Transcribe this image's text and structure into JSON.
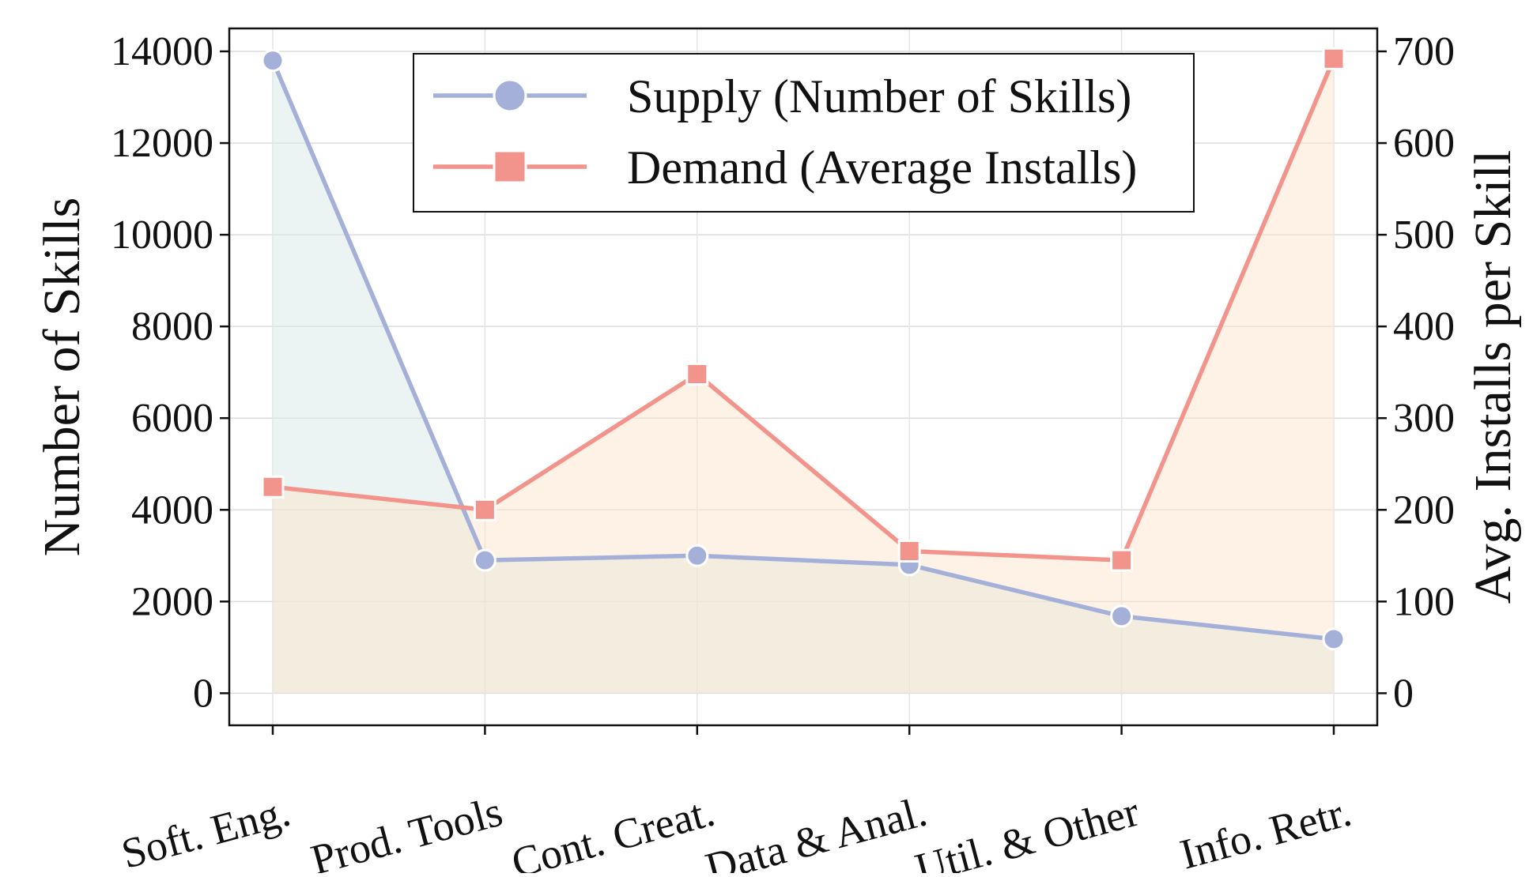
{
  "chart_data": {
    "type": "line",
    "categories": [
      "Soft. Eng.",
      "Prod. Tools",
      "Cont. Creat.",
      "Data & Anal.",
      "Util. & Other",
      "Info. Retr."
    ],
    "series": [
      {
        "name": "Supply (Number of Skills)",
        "axis": "left",
        "color": "#a5b0d9",
        "fill": "#d8eae6",
        "marker": "circle",
        "values": [
          13800,
          2900,
          3000,
          2800,
          1680,
          1180
        ]
      },
      {
        "name": "Demand (Average Installs)",
        "axis": "right",
        "color": "#f3948c",
        "fill": "#fbe5cc",
        "marker": "square",
        "values": [
          225,
          200,
          348,
          155,
          145,
          692
        ]
      }
    ],
    "ylabel": "Number of Skills",
    "y2label": "Avg. Installs per Skill",
    "ylim": [
      -700,
      14500
    ],
    "y2lim": [
      -35,
      725
    ],
    "yticks": [
      "0",
      "2000",
      "4000",
      "6000",
      "8000",
      "10000",
      "12000",
      "14000"
    ],
    "y2ticks": [
      "0",
      "100",
      "200",
      "300",
      "400",
      "500",
      "600",
      "700"
    ],
    "grid": true,
    "legend_position": "top-center"
  }
}
